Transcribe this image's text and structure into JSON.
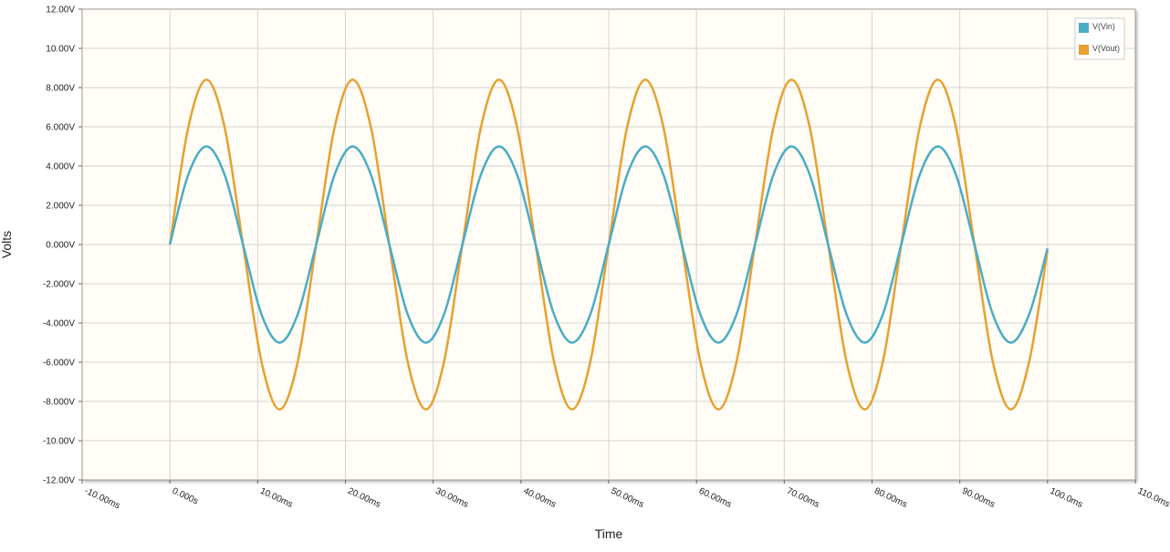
{
  "chart_data": {
    "type": "line",
    "title": "",
    "xlabel": "Time",
    "ylabel": "Volts",
    "xlim": [
      -10,
      110
    ],
    "ylim": [
      -12,
      12
    ],
    "grid": true,
    "legend_position": "top-right",
    "x_tick_values": [
      -10,
      0,
      10,
      20,
      30,
      40,
      50,
      60,
      70,
      80,
      90,
      100,
      110
    ],
    "x_tick_labels": [
      "-10.00ms",
      "0.000s",
      "10.00ms",
      "20.00ms",
      "30.00ms",
      "40.00ms",
      "50.00ms",
      "60.00ms",
      "70.00ms",
      "80.00ms",
      "90.00ms",
      "100.0ms",
      "110.0ms"
    ],
    "y_tick_values": [
      12,
      10,
      8,
      6,
      4,
      2,
      0,
      -2,
      -4,
      -6,
      -8,
      -10,
      -12
    ],
    "y_tick_labels": [
      "12.00V",
      "10.00V",
      "8.000V",
      "6.000V",
      "4.000V",
      "2.000V",
      "0.000V",
      "-2.000V",
      "-4.000V",
      "-6.000V",
      "-8.000V",
      "-10.00V",
      "-12.00V"
    ],
    "series": [
      {
        "name": "V(Vin)",
        "color": "#4bacc6",
        "x_unit": "ms",
        "x": [
          0,
          2.08,
          4.17,
          6.25,
          8.33,
          10.42,
          12.5,
          14.58,
          16.67,
          18.75,
          20.83,
          22.92,
          25,
          27.08,
          29.17,
          31.25,
          33.33,
          35.42,
          37.5,
          39.58,
          41.67,
          43.75,
          45.83,
          47.92,
          50,
          52.08,
          54.17,
          56.25,
          58.33,
          60.42,
          62.5,
          64.58,
          66.67,
          68.75,
          70.83,
          72.92,
          75,
          77.08,
          79.17,
          81.25,
          83.33,
          85.42,
          87.5,
          89.58,
          91.67,
          93.75,
          95.83,
          97.92,
          100
        ],
        "y": [
          0,
          3.54,
          5,
          3.54,
          0,
          -3.54,
          -5,
          -3.54,
          0,
          3.54,
          5,
          3.54,
          0,
          -3.54,
          -5,
          -3.54,
          0,
          3.54,
          5,
          3.54,
          0,
          -3.54,
          -5,
          -3.54,
          0,
          3.54,
          5,
          3.54,
          0,
          -3.54,
          -5,
          -3.54,
          0,
          3.54,
          5,
          3.54,
          0,
          -3.54,
          -5,
          -3.54,
          0,
          3.54,
          5,
          3.54,
          0,
          -3.54,
          -5,
          -3.54,
          -0.2
        ]
      },
      {
        "name": "V(Vout)",
        "color": "#e8a030",
        "x_unit": "ms",
        "x": [
          0,
          2.08,
          4.17,
          6.25,
          8.33,
          10.42,
          12.5,
          14.58,
          16.67,
          18.75,
          20.83,
          22.92,
          25,
          27.08,
          29.17,
          31.25,
          33.33,
          35.42,
          37.5,
          39.58,
          41.67,
          43.75,
          45.83,
          47.92,
          50,
          52.08,
          54.17,
          56.25,
          58.33,
          60.42,
          62.5,
          64.58,
          66.67,
          68.75,
          70.83,
          72.92,
          75,
          77.08,
          79.17,
          81.25,
          83.33,
          85.42,
          87.5,
          89.58,
          91.67,
          93.75,
          95.83,
          97.92,
          100
        ],
        "y": [
          0,
          5.94,
          8.4,
          5.94,
          0,
          -5.94,
          -8.4,
          -5.94,
          0,
          5.94,
          8.4,
          5.94,
          0,
          -5.94,
          -8.4,
          -5.94,
          0,
          5.94,
          8.4,
          5.94,
          0,
          -5.94,
          -8.4,
          -5.94,
          0,
          5.94,
          8.4,
          5.94,
          0,
          -5.94,
          -8.4,
          -5.94,
          0,
          5.94,
          8.4,
          5.94,
          0,
          -5.94,
          -8.4,
          -5.94,
          0,
          5.94,
          8.4,
          5.94,
          0,
          -5.94,
          -8.4,
          -5.94,
          -0.3
        ]
      }
    ]
  }
}
